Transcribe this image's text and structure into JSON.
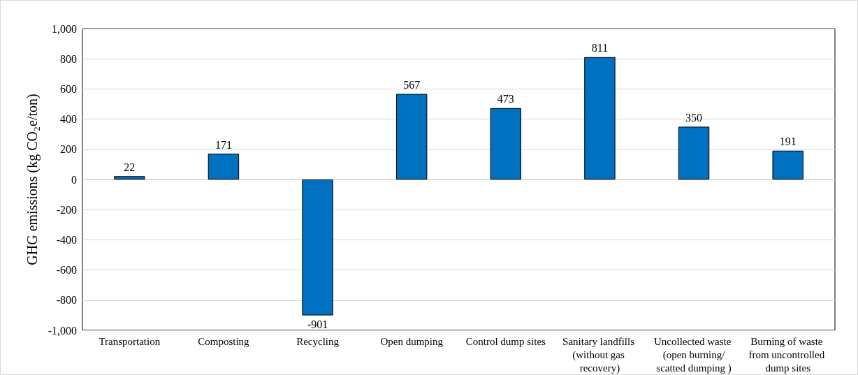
{
  "chart_data": {
    "type": "bar",
    "ylabel": "GHG emissions (kg CO₂e/ton)",
    "categories": [
      "Transportation",
      "Composting",
      "Recycling",
      "Open dumping",
      "Control dump sites",
      "Sanitary landfills (without gas recovery)",
      "Uncollected waste (open burning/scatted dumping )",
      "Burning of waste from uncontrolled dump sites"
    ],
    "values": [
      22,
      171,
      -901,
      567,
      473,
      811,
      350,
      191
    ],
    "color": "#0070c0",
    "ylim": [
      -1000,
      1000
    ],
    "yticks": [
      {
        "value": -1000,
        "label": "-1,000"
      },
      -800,
      -600,
      -400,
      -200,
      0,
      200,
      400,
      600,
      800,
      {
        "value": 1000,
        "label": "1,000"
      }
    ],
    "grid": "y",
    "data_labels": true
  }
}
